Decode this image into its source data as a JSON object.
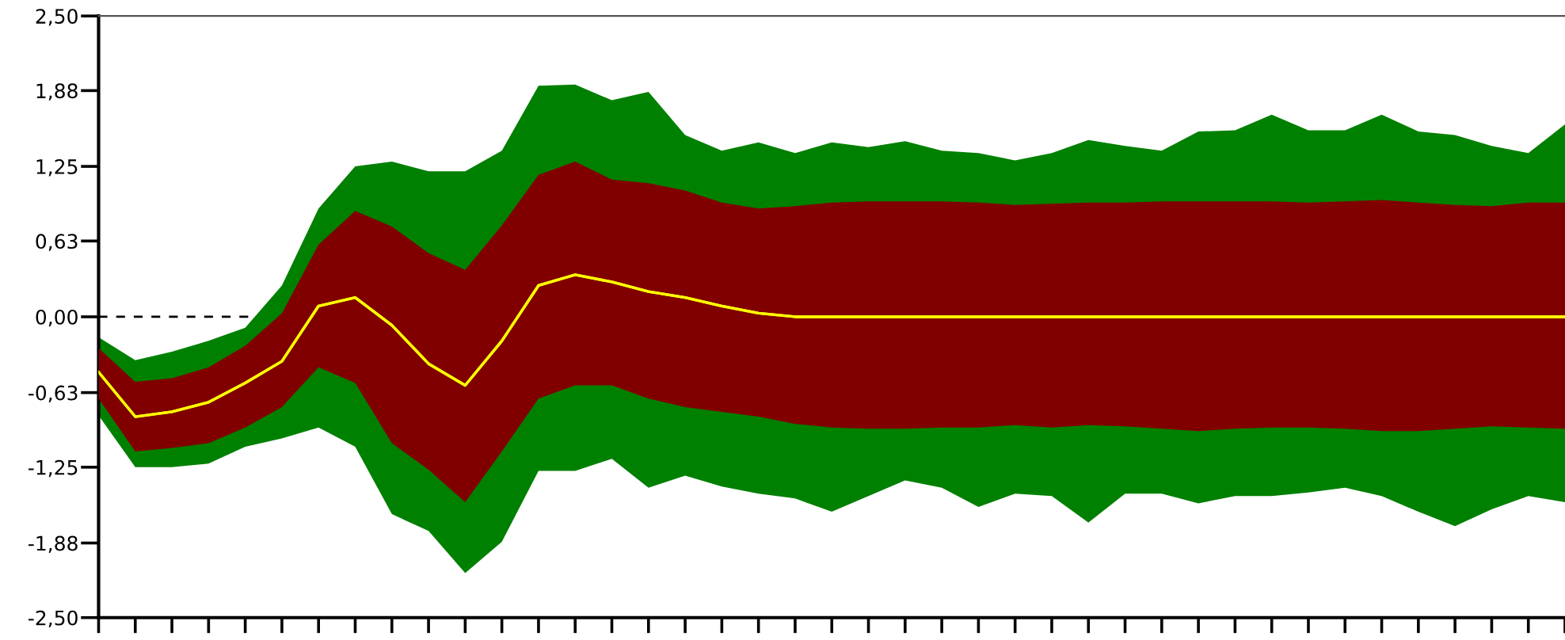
{
  "chart_data": {
    "type": "line",
    "categories": [
      null,
      null,
      null,
      null,
      null,
      null,
      null,
      null,
      null,
      null,
      null,
      null,
      null,
      null,
      null,
      null,
      null,
      null,
      null,
      null,
      null,
      null,
      null,
      null,
      null,
      null,
      null,
      null,
      null,
      null,
      null,
      null,
      null,
      null,
      null,
      null,
      null,
      null,
      null,
      null,
      null
    ],
    "ylim": [
      -2.5,
      2.5
    ],
    "yticks": [
      {
        "value": -2.5,
        "label": "-2,50"
      },
      {
        "value": -1.88,
        "label": "-1,88"
      },
      {
        "value": -1.25,
        "label": "-1,25"
      },
      {
        "value": -0.63,
        "label": "-0,63"
      },
      {
        "value": 0,
        "label": "0,00"
      },
      {
        "value": 0.63,
        "label": "0,63"
      },
      {
        "value": 1.25,
        "label": "1,25"
      },
      {
        "value": 1.88,
        "label": "1,88"
      },
      {
        "value": 2.5,
        "label": "2,50"
      }
    ],
    "grid": false,
    "legend": false,
    "ref_lines": [
      {
        "axis": "y",
        "value": 0,
        "label": null,
        "color": "#000000",
        "line_style": "dashed"
      }
    ],
    "series": [
      {
        "color": "#ffff00",
        "colors": [
          "#008000",
          "#008000",
          "#008000",
          "#008000",
          "#008000",
          "#008000",
          "#008000",
          "#008000",
          "#008000",
          "#008000",
          "#008000",
          "#008000",
          "#008000",
          "#008000",
          "#008000",
          "#008000",
          "#008000",
          "#008000",
          "#008000",
          "#008000",
          "#008000",
          "#008000",
          "#008000",
          "#008000",
          "#008000",
          "#008000",
          "#008000",
          "#008000",
          "#008000",
          "#008000",
          "#008000",
          "#008000",
          "#008000",
          "#008000",
          "#008000",
          "#008000",
          "#008000",
          "#008000",
          "#008000",
          "#008000",
          "#008000"
        ],
        "line_style": "solid",
        "values": [
          -0.46,
          -0.83,
          -0.79,
          -0.71,
          -0.55,
          -0.37,
          0.09,
          0.16,
          -0.07,
          -0.39,
          -0.57,
          -0.2,
          0.26,
          0.35,
          0.29,
          0.21,
          0.16,
          0.09,
          0.03,
          0,
          0,
          0,
          0,
          0,
          0,
          0,
          0,
          0,
          0,
          0,
          0,
          0,
          0,
          0,
          0,
          0,
          0,
          0,
          0,
          0,
          0
        ],
        "upper": [
          -0.17,
          -0.36,
          -0.29,
          -0.2,
          -0.09,
          0.26,
          0.9,
          1.25,
          1.29,
          1.21,
          1.21,
          1.38,
          1.92,
          1.93,
          1.8,
          1.87,
          1.51,
          1.38,
          1.45,
          1.36,
          1.45,
          1.41,
          1.46,
          1.38,
          1.36,
          1.3,
          1.36,
          1.47,
          1.42,
          1.38,
          1.54,
          1.55,
          1.68,
          1.55,
          1.55,
          1.68,
          1.54,
          1.51,
          1.42,
          1.36,
          1.6
        ],
        "lower": [
          -0.82,
          -1.25,
          -1.25,
          -1.22,
          -1.08,
          -1.01,
          -0.92,
          -1.08,
          -1.64,
          -1.78,
          -2.13,
          -1.87,
          -1.28,
          -1.28,
          -1.18,
          -1.42,
          -1.32,
          -1.41,
          -1.47,
          -1.51,
          -1.62,
          -1.49,
          -1.36,
          -1.42,
          -1.58,
          -1.47,
          -1.49,
          -1.71,
          -1.47,
          -1.47,
          -1.55,
          -1.49,
          -1.49,
          -1.46,
          -1.42,
          -1.49,
          -1.62,
          -1.74,
          -1.6,
          -1.49,
          -1.54
        ]
      },
      {
        "color": "#ffff00",
        "colors": [
          "#800000",
          "#800000",
          "#800000",
          "#800000",
          "#800000",
          "#800000",
          "#800000",
          "#800000",
          "#800000",
          "#800000",
          "#800000",
          "#800000",
          "#800000",
          "#800000",
          "#800000",
          "#800000",
          "#800000",
          "#800000",
          "#800000",
          "#800000",
          "#800000",
          "#800000",
          "#800000",
          "#800000",
          "#800000",
          "#800000",
          "#800000",
          "#800000",
          "#800000",
          "#800000",
          "#800000",
          "#800000",
          "#800000",
          "#800000",
          "#800000",
          "#800000",
          "#800000",
          "#800000",
          "#800000",
          "#800000",
          "#800000"
        ],
        "line_style": "solid",
        "values": [
          -0.46,
          -0.83,
          -0.79,
          -0.71,
          -0.55,
          -0.37,
          0.09,
          0.16,
          -0.07,
          -0.39,
          -0.57,
          -0.2,
          0.26,
          0.35,
          0.29,
          0.21,
          0.16,
          0.09,
          0.03,
          0,
          0,
          0,
          0,
          0,
          0,
          0,
          0,
          0,
          0,
          0,
          0,
          0,
          0,
          0,
          0,
          0,
          0,
          0,
          0,
          0,
          0
        ],
        "upper": [
          -0.26,
          -0.54,
          -0.51,
          -0.42,
          -0.24,
          0.03,
          0.6,
          0.88,
          0.75,
          0.53,
          0.39,
          0.76,
          1.18,
          1.29,
          1.14,
          1.11,
          1.05,
          0.95,
          0.9,
          0.92,
          0.95,
          0.96,
          0.96,
          0.96,
          0.95,
          0.93,
          0.94,
          0.95,
          0.95,
          0.96,
          0.96,
          0.96,
          0.96,
          0.95,
          0.96,
          0.97,
          0.95,
          0.93,
          0.92,
          0.95,
          0.95
        ],
        "lower": [
          -0.68,
          -1.12,
          -1.09,
          -1.05,
          -0.92,
          -0.75,
          -0.42,
          -0.55,
          -1.05,
          -1.27,
          -1.54,
          -1.12,
          -0.68,
          -0.57,
          -0.57,
          -0.68,
          -0.75,
          -0.79,
          -0.83,
          -0.89,
          -0.92,
          -0.93,
          -0.93,
          -0.92,
          -0.92,
          -0.9,
          -0.92,
          -0.9,
          -0.91,
          -0.93,
          -0.95,
          -0.93,
          -0.92,
          -0.92,
          -0.93,
          -0.95,
          -0.95,
          -0.93,
          -0.91,
          -0.92,
          -0.93
        ]
      }
    ]
  }
}
